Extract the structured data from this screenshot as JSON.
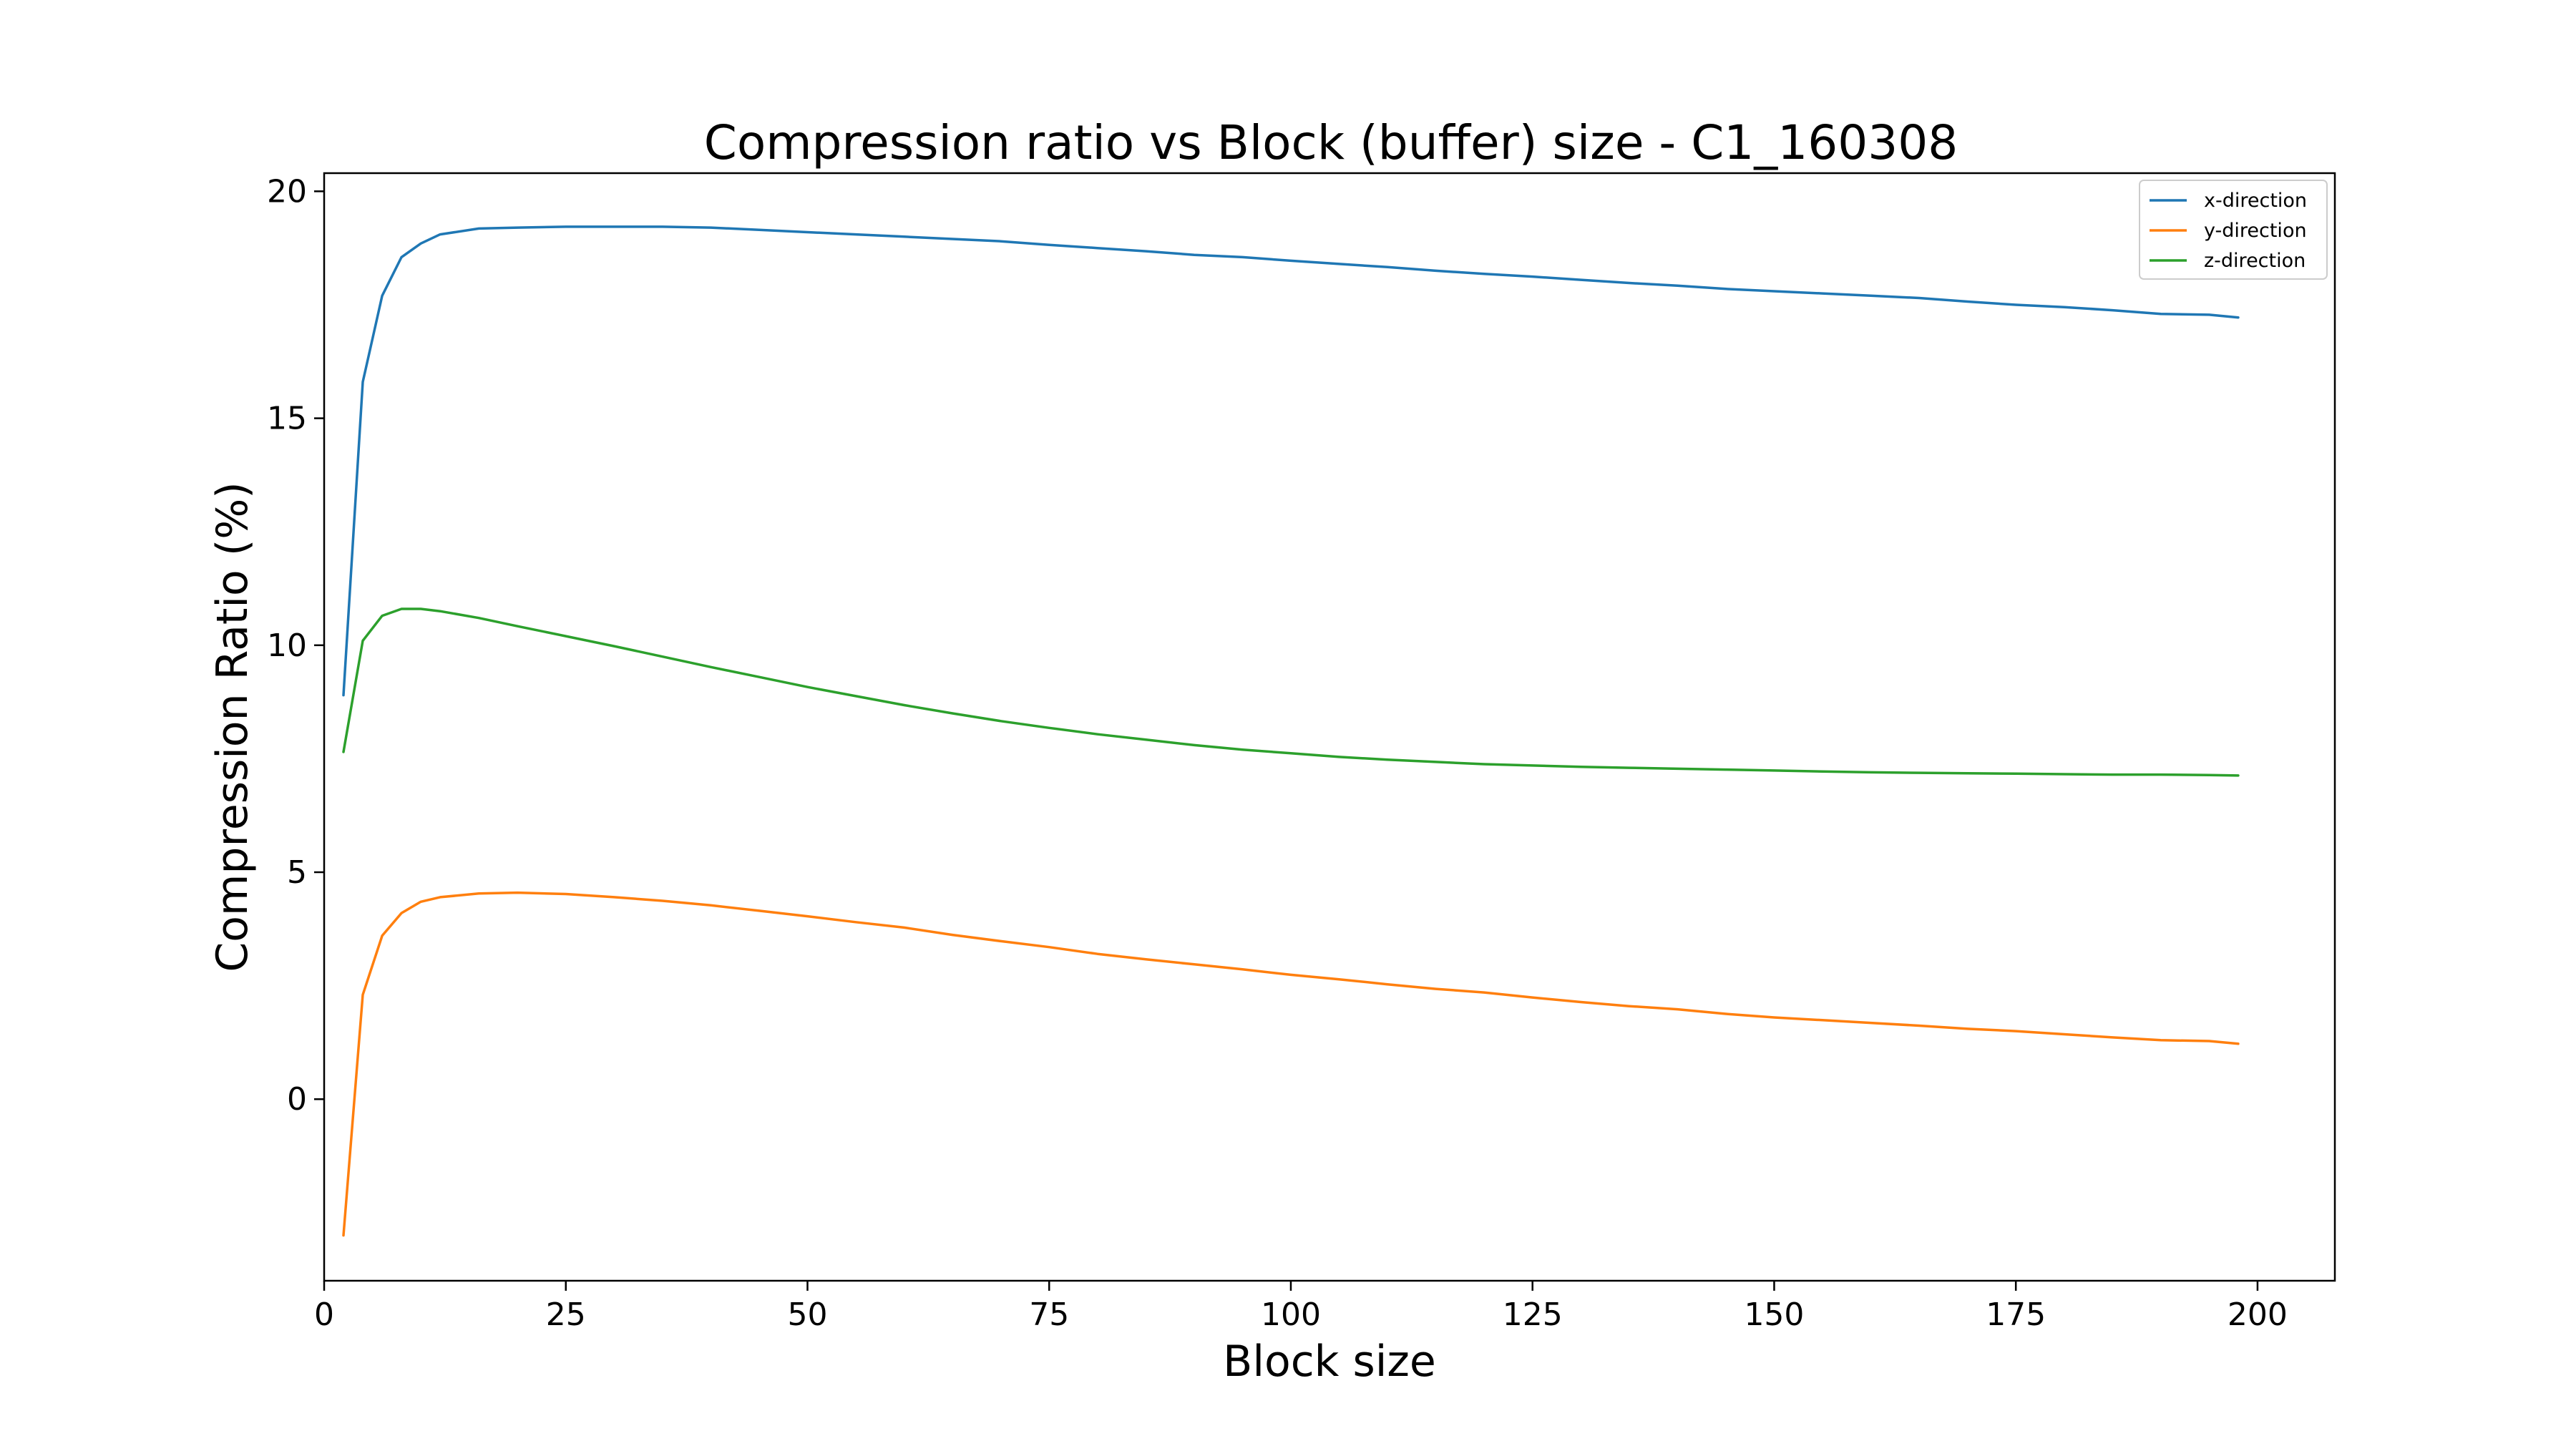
{
  "chart_data": {
    "type": "line",
    "title": "Compression ratio vs Block (buffer) size - C1_160308",
    "xlabel": "Block size",
    "ylabel": "Compression Ratio (%)",
    "xlim": [
      0,
      208
    ],
    "ylim": [
      -4,
      20.4
    ],
    "xticks": [
      0,
      25,
      50,
      75,
      100,
      125,
      150,
      175,
      200
    ],
    "yticks": [
      0,
      5,
      10,
      15,
      20
    ],
    "grid": false,
    "legend_position": "top-right",
    "series": [
      {
        "name": "x-direction",
        "color": "#1f77b4",
        "x": [
          2,
          4,
          6,
          8,
          10,
          12,
          16,
          20,
          25,
          30,
          35,
          40,
          45,
          50,
          55,
          60,
          65,
          70,
          75,
          80,
          85,
          90,
          95,
          100,
          105,
          110,
          115,
          120,
          125,
          130,
          135,
          140,
          145,
          150,
          155,
          160,
          165,
          170,
          175,
          180,
          185,
          190,
          195,
          198
        ],
        "y": [
          8.9,
          15.8,
          17.7,
          18.55,
          18.85,
          19.05,
          19.18,
          19.2,
          19.22,
          19.22,
          19.22,
          19.2,
          19.15,
          19.1,
          19.05,
          19.0,
          18.95,
          18.9,
          18.82,
          18.75,
          18.68,
          18.6,
          18.55,
          18.47,
          18.4,
          18.33,
          18.25,
          18.18,
          18.12,
          18.05,
          17.98,
          17.92,
          17.85,
          17.8,
          17.75,
          17.7,
          17.65,
          17.57,
          17.5,
          17.45,
          17.38,
          17.3,
          17.28,
          17.22
        ]
      },
      {
        "name": "y-direction",
        "color": "#ff7f0e",
        "x": [
          2,
          4,
          6,
          8,
          10,
          12,
          16,
          20,
          25,
          30,
          35,
          40,
          45,
          50,
          55,
          60,
          65,
          70,
          75,
          80,
          85,
          90,
          95,
          100,
          105,
          110,
          115,
          120,
          125,
          130,
          135,
          140,
          145,
          150,
          155,
          160,
          165,
          170,
          175,
          180,
          185,
          190,
          195,
          198
        ],
        "y": [
          -3.0,
          2.3,
          3.6,
          4.1,
          4.35,
          4.45,
          4.53,
          4.55,
          4.52,
          4.45,
          4.37,
          4.27,
          4.15,
          4.03,
          3.9,
          3.78,
          3.62,
          3.48,
          3.35,
          3.2,
          3.08,
          2.97,
          2.86,
          2.74,
          2.64,
          2.53,
          2.43,
          2.35,
          2.24,
          2.14,
          2.05,
          1.98,
          1.88,
          1.8,
          1.74,
          1.68,
          1.62,
          1.55,
          1.5,
          1.43,
          1.36,
          1.3,
          1.28,
          1.22
        ]
      },
      {
        "name": "z-direction",
        "color": "#2ca02c",
        "x": [
          2,
          4,
          6,
          8,
          10,
          12,
          16,
          20,
          25,
          30,
          35,
          40,
          45,
          50,
          55,
          60,
          65,
          70,
          75,
          80,
          85,
          90,
          95,
          100,
          105,
          110,
          115,
          120,
          125,
          130,
          135,
          140,
          145,
          150,
          155,
          160,
          165,
          170,
          175,
          180,
          185,
          190,
          195,
          198
        ],
        "y": [
          7.65,
          10.1,
          10.65,
          10.8,
          10.8,
          10.75,
          10.6,
          10.42,
          10.2,
          9.98,
          9.75,
          9.52,
          9.3,
          9.08,
          8.88,
          8.68,
          8.5,
          8.33,
          8.18,
          8.04,
          7.92,
          7.8,
          7.7,
          7.62,
          7.54,
          7.48,
          7.43,
          7.38,
          7.35,
          7.32,
          7.3,
          7.28,
          7.26,
          7.24,
          7.22,
          7.2,
          7.19,
          7.18,
          7.17,
          7.16,
          7.15,
          7.15,
          7.14,
          7.13
        ]
      }
    ]
  }
}
